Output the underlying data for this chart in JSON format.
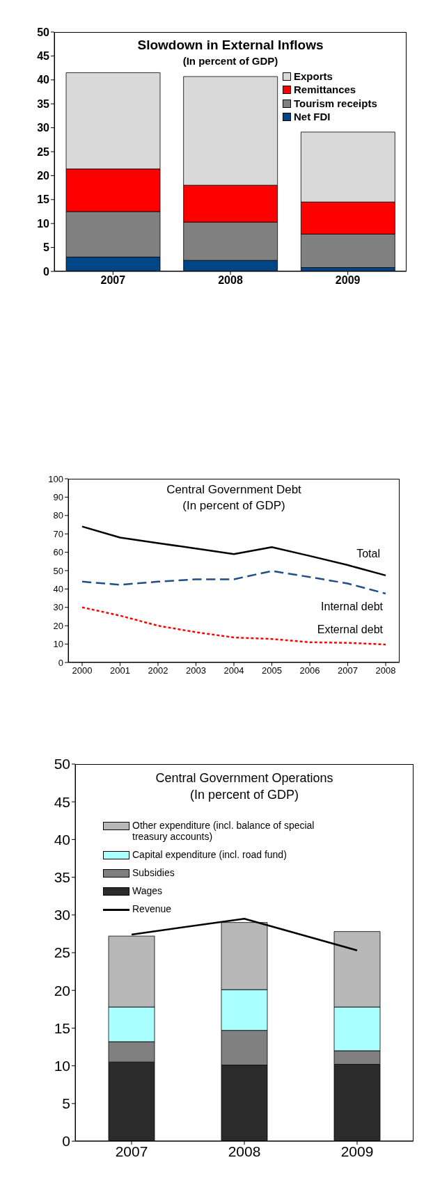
{
  "chart_data": [
    {
      "type": "bar",
      "title": "Slowdown in External Inflows",
      "subtitle": "(In percent of GDP)",
      "categories": [
        "2007",
        "2008",
        "2009"
      ],
      "stacked": true,
      "legend": "top right",
      "ylim": [
        0,
        50
      ],
      "yticks": [
        0,
        5,
        10,
        15,
        20,
        25,
        30,
        35,
        40,
        45,
        50
      ],
      "series": [
        {
          "name": "Net FDI",
          "color": "#004586",
          "values": [
            3.0,
            2.3,
            0.8
          ]
        },
        {
          "name": "Tourism receipts",
          "color": "#808080",
          "values": [
            9.5,
            8.0,
            7.0
          ]
        },
        {
          "name": "Remittances",
          "color": "#ff0000",
          "values": [
            8.9,
            7.7,
            6.7
          ]
        },
        {
          "name": "Exports",
          "color": "#d9d9d9",
          "values": [
            20.1,
            22.7,
            14.6
          ]
        }
      ]
    },
    {
      "type": "line",
      "title": "Central Government Debt",
      "subtitle": "(In percent of GDP)",
      "categories": [
        "2000",
        "2001",
        "2002",
        "2003",
        "2004",
        "2005",
        "2006",
        "2007",
        "2008"
      ],
      "marker": "none",
      "ylim": [
        0,
        100
      ],
      "yticks": [
        0,
        10,
        20,
        30,
        40,
        50,
        60,
        70,
        80,
        90,
        100
      ],
      "series": [
        {
          "name": "Total",
          "color": "#000000",
          "line_style": "solid",
          "values": [
            74,
            68,
            65,
            62,
            59,
            62.8,
            58,
            53,
            47.4
          ]
        },
        {
          "name": "Internal debt",
          "color": "#1f4e85",
          "line_style": "dashed",
          "values": [
            44,
            42.3,
            44,
            45.3,
            45.3,
            49.8,
            46.5,
            43,
            37.5
          ]
        },
        {
          "name": "External debt",
          "color": "#ff0000",
          "line_style": "dotted",
          "values": [
            30,
            25.5,
            20,
            16.5,
            13.6,
            12.8,
            11,
            10.7,
            9.8
          ]
        }
      ]
    },
    {
      "type": "bar",
      "title": "Central Government Operations",
      "subtitle": "(In percent of GDP)",
      "categories": [
        "2007",
        "2008",
        "2009"
      ],
      "stacked": true,
      "legend": "top left",
      "ylim": [
        0,
        50
      ],
      "yticks": [
        0,
        5,
        10,
        15,
        20,
        25,
        30,
        35,
        40,
        45,
        50
      ],
      "series": [
        {
          "name": "Wages",
          "color": "#2b2b2b",
          "values": [
            10.5,
            10.1,
            10.2
          ]
        },
        {
          "name": "Subsidies",
          "color": "#808080",
          "values": [
            2.7,
            4.6,
            1.8
          ]
        },
        {
          "name": "Capital expenditure (incl. road fund)",
          "color": "#aaffff",
          "values": [
            4.6,
            5.4,
            5.8
          ]
        },
        {
          "name": "Other expenditure (incl. balance of special treasury accounts)",
          "color": "#b8b8b8",
          "values": [
            9.4,
            8.9,
            10.0
          ]
        },
        {
          "name": "Revenue",
          "type": "line",
          "color": "#000000",
          "values": [
            27.4,
            29.5,
            25.3
          ]
        }
      ]
    }
  ]
}
